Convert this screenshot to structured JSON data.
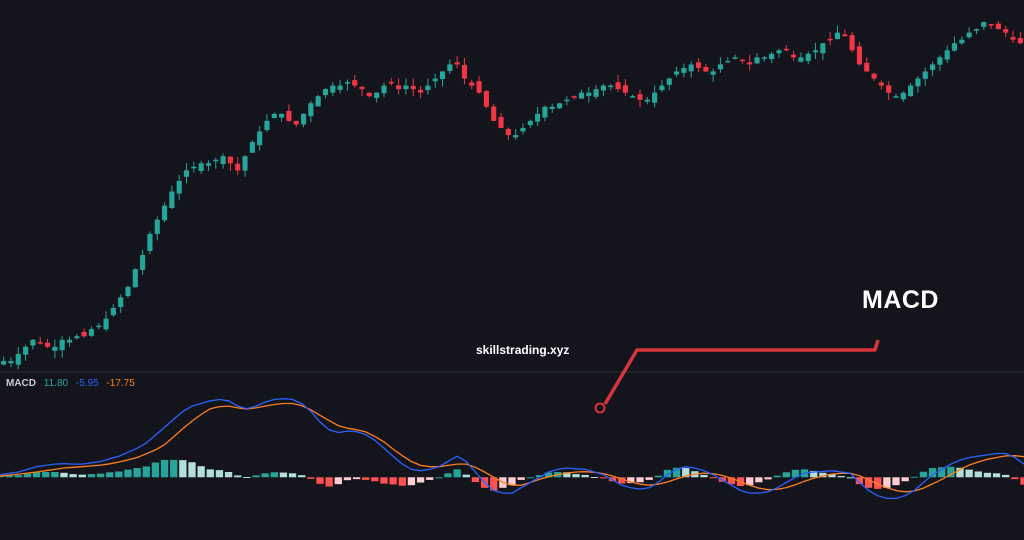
{
  "watermark": "skillstrading.xyz",
  "annotation": {
    "label": "MACD",
    "color": "#d8343c"
  },
  "colors": {
    "background": "#14151c",
    "candle_up": "#26a69a",
    "candle_down": "#f23645",
    "macd_line": "#2962ff",
    "signal_line": "#ff7e1f",
    "hist_up_strong": "#26a69a",
    "hist_up_weak": "#b2dfdb",
    "hist_down_strong": "#ff5252",
    "hist_down_weak": "#ffcdd2",
    "divider": "#2a2e39"
  },
  "chart_data": [
    {
      "type": "candlestick",
      "title": "",
      "ylim": [
        0,
        100
      ],
      "close": [
        2,
        2,
        4,
        6,
        8,
        7,
        6,
        6,
        8,
        8,
        9,
        9,
        11,
        12,
        14,
        17,
        20,
        23,
        28,
        32,
        38,
        42,
        46,
        50,
        53,
        56,
        57,
        58,
        58,
        59,
        60,
        58,
        56,
        60,
        64,
        67,
        70,
        72,
        72,
        70,
        69,
        72,
        75,
        77,
        79,
        80,
        80,
        81,
        80,
        79,
        77,
        78,
        80,
        81,
        79,
        80,
        79,
        78,
        80,
        82,
        84,
        86,
        86,
        82,
        80,
        78,
        74,
        70,
        68,
        66,
        66,
        68,
        70,
        72,
        74,
        74,
        75,
        76,
        77,
        78,
        78,
        79,
        80,
        80,
        79,
        78,
        77,
        76,
        76,
        78,
        80,
        82,
        84,
        85,
        86,
        85,
        84,
        84,
        86,
        87,
        88,
        87,
        86,
        88,
        88,
        89,
        90,
        90,
        88,
        88,
        89,
        90,
        92,
        93,
        95,
        94,
        90,
        86,
        84,
        82,
        80,
        78,
        77,
        78,
        80,
        82,
        84,
        86,
        88,
        90,
        92,
        93,
        95,
        96,
        98,
        97,
        96,
        95,
        93,
        92
      ],
      "open_offsets_in": "script"
    },
    {
      "type": "macd",
      "legend": {
        "name": "MACD",
        "values": [
          "11.80",
          "-5.95",
          "-17.75"
        ],
        "colors": [
          "#26a69a",
          "#2962ff",
          "#ff7e1f"
        ]
      },
      "ylim": [
        -20,
        35
      ],
      "macd": [
        1,
        1.5,
        2,
        3,
        4,
        4.5,
        5,
        5.2,
        5,
        5,
        5.5,
        6,
        7,
        8,
        9.5,
        11,
        13,
        16,
        19,
        22,
        25,
        27,
        28,
        29,
        29.5,
        29,
        27,
        26,
        27,
        28.5,
        29.5,
        29.8,
        29.5,
        28,
        25,
        21,
        18,
        17,
        17.5,
        17.3,
        16.2,
        14,
        11,
        8,
        5,
        3,
        2.5,
        3,
        4,
        6,
        8,
        6,
        2,
        -2,
        -5,
        -6,
        -6,
        -4,
        -2,
        0,
        2,
        3,
        3.5,
        3.2,
        3,
        2,
        1,
        -1,
        -3,
        -4,
        -4.5,
        -4,
        -2,
        1,
        3,
        4,
        3.5,
        2.5,
        1,
        -1,
        -3,
        -5,
        -6,
        -6,
        -5.5,
        -4,
        -2,
        0,
        1.5,
        2,
        2.2,
        2.5,
        2,
        1.5,
        -2,
        -5,
        -7,
        -8,
        -8,
        -7,
        -5,
        -2,
        1,
        3,
        5,
        6.5,
        7.5,
        8,
        8.5,
        9,
        9,
        7.5,
        5
      ],
      "signal": [
        0.5,
        0.8,
        1.2,
        1.6,
        2,
        2.5,
        3,
        3.5,
        3.8,
        4,
        4.3,
        4.6,
        5.1,
        5.8,
        6.6,
        7.5,
        8.9,
        10.4,
        12.4,
        15.4,
        18.5,
        21.3,
        23.8,
        26,
        26.8,
        27,
        26.3,
        25.9,
        26.3,
        27,
        27.6,
        28,
        28,
        27.2,
        25.6,
        23.5,
        21.5,
        19.6,
        18.6,
        18,
        17.2,
        15.5,
        13.4,
        10.7,
        8.2,
        6,
        4.5,
        4,
        4,
        4.5,
        5,
        5,
        3.8,
        2,
        0,
        -2,
        -3,
        -3,
        -2,
        -0.8,
        0.2,
        1,
        1.6,
        2,
        2.1,
        1.9,
        1.4,
        0.5,
        -0.6,
        -1.8,
        -2.6,
        -3,
        -2.6,
        -1.8,
        -0.6,
        0.5,
        1.2,
        1.6,
        1.4,
        0.7,
        -0.4,
        -1.7,
        -3,
        -4.1,
        -4.7,
        -4.6,
        -3.9,
        -2.8,
        -1.5,
        -0.4,
        0.5,
        1.2,
        1.5,
        1.5,
        0.6,
        -1,
        -2.6,
        -4,
        -5,
        -5.5,
        -5.2,
        -4.1,
        -2.5,
        -0.8,
        1,
        2.9,
        4.6,
        5.8,
        6.8,
        7.5,
        8.1,
        8.2,
        7.8
      ]
    }
  ]
}
